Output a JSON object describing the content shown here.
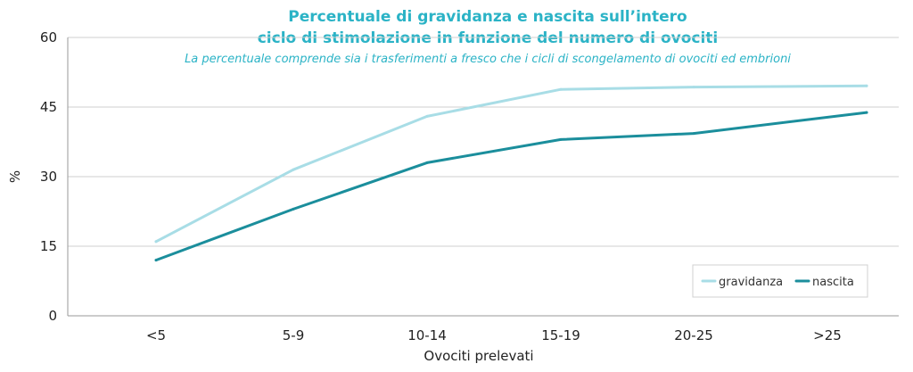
{
  "chart_data": {
    "type": "line",
    "title_lines": [
      "Percentuale di gravidanza e nascita sull’intero",
      "ciclo di stimolazione in funzione del numero di ovociti"
    ],
    "subtitle": "La percentuale comprende sia i trasferimenti a fresco che i cicli di scongelamento di ovociti ed embrioni",
    "xlabel": "Ovociti prelevati",
    "ylabel": "%",
    "categories": [
      "<5",
      "5-9",
      "10-14",
      "15-19",
      "20-25",
      ">25"
    ],
    "yticks": [
      0,
      15,
      30,
      45,
      60
    ],
    "ylim": [
      0,
      60
    ],
    "grid": true,
    "legend_position": "bottom-right",
    "series": [
      {
        "name": "gravidanza",
        "color": "#a8dde6",
        "values": [
          16,
          31.5,
          43,
          48.8,
          49.3,
          49.5
        ]
      },
      {
        "name": "nascita",
        "color": "#1b8e9c",
        "values": [
          12,
          23,
          33,
          38,
          39.3,
          42.8
        ]
      }
    ]
  }
}
